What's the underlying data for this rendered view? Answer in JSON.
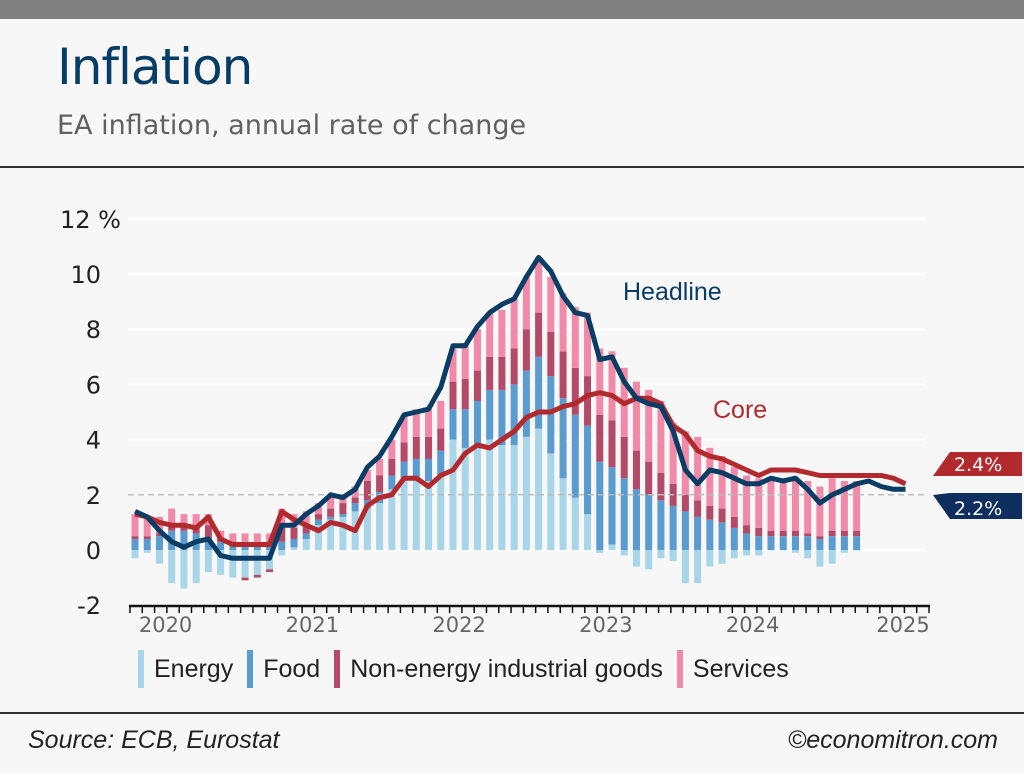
{
  "header": {
    "title": "Inflation",
    "subtitle": "EA inflation, annual rate of change"
  },
  "footer": {
    "source": "Source: ECB, Eurostat",
    "credit": "©economitron.com"
  },
  "colors": {
    "energy": "#a8d5e8",
    "food": "#5a9bd0",
    "neig": "#b24a68",
    "services": "#f08aa8",
    "headline": "#0a3d66",
    "core": "#b22a2e",
    "target_line": "#bbbbbb"
  },
  "chart_data": {
    "type": "bar",
    "title": "Inflation",
    "subtitle": "EA inflation, annual rate of change",
    "ylabel": "%",
    "ylim": [
      -2,
      12
    ],
    "yticks": [
      -2,
      0,
      2,
      4,
      6,
      8,
      10,
      12
    ],
    "ytick_labels": [
      "-2",
      "0",
      "2",
      "4",
      "6",
      "8",
      "10",
      "12 %"
    ],
    "x_start": "2020-01",
    "x_end": "2025-05",
    "xtick_labels": [
      "2020",
      "2021",
      "2022",
      "2023",
      "2024",
      "2025"
    ],
    "grid": true,
    "reference_line": {
      "value": 2,
      "style": "dashed"
    },
    "legend": {
      "placement": "bottom",
      "entries": [
        "Energy",
        "Food",
        "Non-energy industrial goods",
        "Services"
      ]
    },
    "bar_months_from": "2020-01",
    "series": [
      {
        "name": "Energy",
        "kind": "bar",
        "values": [
          -0.3,
          -0.1,
          -0.5,
          -1.2,
          -1.4,
          -1.2,
          -0.8,
          -0.9,
          -1.0,
          -1.0,
          -0.9,
          -0.7,
          -0.2,
          0.1,
          0.4,
          0.9,
          1.1,
          1.2,
          1.4,
          1.5,
          1.7,
          2.2,
          2.6,
          2.6,
          2.5,
          2.7,
          4.0,
          3.7,
          3.8,
          4.0,
          3.8,
          3.8,
          4.1,
          4.4,
          3.5,
          2.6,
          1.9,
          1.3,
          -0.1,
          0.2,
          -0.2,
          -0.6,
          -0.7,
          -0.3,
          -0.4,
          -1.2,
          -1.2,
          -0.6,
          -0.5,
          -0.3,
          -0.2,
          -0.2,
          0.0,
          0.0,
          -0.1,
          -0.3,
          -0.6,
          -0.5,
          -0.1,
          0.0
        ]
      },
      {
        "name": "Food",
        "kind": "bar",
        "values": [
          0.4,
          0.4,
          0.5,
          0.7,
          0.7,
          0.6,
          0.4,
          0.3,
          0.3,
          0.3,
          0.3,
          0.3,
          0.3,
          0.3,
          0.2,
          0.2,
          0.1,
          0.1,
          0.3,
          0.3,
          0.4,
          0.5,
          0.6,
          0.7,
          0.8,
          0.9,
          1.1,
          1.4,
          1.6,
          1.8,
          2.0,
          2.2,
          2.4,
          2.6,
          2.8,
          2.9,
          3.0,
          3.2,
          3.2,
          2.8,
          2.6,
          2.2,
          2.0,
          1.8,
          1.6,
          1.4,
          1.2,
          1.1,
          1.0,
          0.8,
          0.6,
          0.5,
          0.5,
          0.5,
          0.5,
          0.5,
          0.4,
          0.5,
          0.5,
          0.5
        ]
      },
      {
        "name": "Non-energy industrial goods",
        "kind": "bar",
        "values": [
          0.1,
          0.1,
          0.1,
          0.2,
          0.2,
          0.2,
          0.5,
          0.1,
          0.0,
          -0.1,
          -0.1,
          -0.1,
          0.6,
          0.4,
          0.3,
          0.2,
          0.3,
          0.4,
          0.2,
          0.7,
          0.6,
          0.6,
          0.7,
          0.8,
          0.8,
          0.8,
          1.0,
          1.1,
          1.1,
          1.2,
          1.2,
          1.3,
          1.5,
          1.6,
          1.6,
          1.7,
          1.7,
          1.8,
          1.7,
          1.7,
          1.5,
          1.4,
          1.2,
          1.0,
          0.8,
          0.6,
          0.6,
          0.5,
          0.5,
          0.4,
          0.3,
          0.3,
          0.2,
          0.2,
          0.2,
          0.1,
          0.1,
          0.2,
          0.2,
          0.2
        ]
      },
      {
        "name": "Services",
        "kind": "bar",
        "values": [
          0.8,
          0.7,
          0.6,
          0.6,
          0.4,
          0.5,
          0.4,
          0.3,
          0.3,
          0.3,
          0.3,
          0.3,
          0.6,
          0.5,
          0.5,
          0.4,
          0.5,
          0.3,
          0.4,
          0.4,
          0.6,
          0.7,
          1.0,
          1.0,
          1.0,
          1.0,
          1.2,
          1.3,
          1.5,
          1.6,
          1.7,
          1.8,
          1.9,
          2.0,
          2.0,
          2.1,
          2.2,
          2.3,
          2.4,
          2.5,
          2.5,
          2.5,
          2.6,
          2.6,
          2.2,
          2.3,
          2.3,
          2.1,
          1.9,
          1.8,
          1.8,
          1.8,
          1.8,
          1.9,
          1.9,
          1.9,
          1.8,
          1.9,
          1.8,
          1.8
        ]
      },
      {
        "name": "Headline",
        "kind": "line",
        "end_label": "2.2%",
        "values": [
          1.4,
          1.2,
          0.7,
          0.3,
          0.1,
          0.3,
          0.4,
          -0.2,
          -0.3,
          -0.3,
          -0.3,
          -0.3,
          0.9,
          0.9,
          1.3,
          1.6,
          2.0,
          1.9,
          2.2,
          3.0,
          3.4,
          4.1,
          4.9,
          5.0,
          5.1,
          5.9,
          7.4,
          7.4,
          8.1,
          8.6,
          8.9,
          9.1,
          9.9,
          10.6,
          10.1,
          9.2,
          8.6,
          8.5,
          6.9,
          7.0,
          6.1,
          5.5,
          5.3,
          5.2,
          4.3,
          2.9,
          2.4,
          2.9,
          2.8,
          2.6,
          2.4,
          2.4,
          2.6,
          2.5,
          2.6,
          2.2,
          1.7,
          2.0,
          2.2,
          2.4,
          2.5,
          2.3,
          2.2,
          2.2
        ]
      },
      {
        "name": "Core",
        "kind": "line",
        "end_label": "2.4%",
        "values": [
          1.3,
          1.2,
          1.0,
          0.9,
          0.9,
          0.8,
          1.2,
          0.4,
          0.2,
          0.2,
          0.2,
          0.2,
          1.4,
          1.1,
          0.9,
          0.7,
          1.0,
          0.9,
          0.7,
          1.6,
          1.9,
          2.0,
          2.6,
          2.6,
          2.3,
          2.7,
          2.9,
          3.5,
          3.8,
          3.7,
          4.0,
          4.3,
          4.8,
          5.0,
          5.0,
          5.2,
          5.3,
          5.6,
          5.7,
          5.6,
          5.3,
          5.5,
          5.5,
          5.3,
          4.5,
          4.2,
          3.6,
          3.4,
          3.3,
          3.1,
          2.9,
          2.7,
          2.9,
          2.9,
          2.9,
          2.8,
          2.7,
          2.7,
          2.7,
          2.7,
          2.7,
          2.7,
          2.6,
          2.4
        ]
      }
    ],
    "annotations": [
      {
        "text": "Headline",
        "series": "Headline"
      },
      {
        "text": "Core",
        "series": "Core"
      }
    ]
  }
}
